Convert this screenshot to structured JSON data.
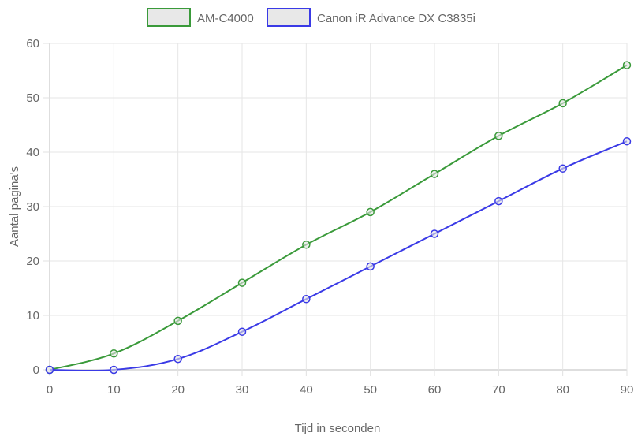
{
  "chart_data": {
    "type": "line",
    "xlabel": "Tijd in seconden",
    "ylabel": "Aantal pagina's",
    "x": [
      0,
      10,
      20,
      30,
      40,
      50,
      60,
      70,
      80,
      90
    ],
    "xlim": [
      0,
      90
    ],
    "ylim": [
      0,
      60
    ],
    "xticks": [
      "0",
      "10",
      "20",
      "30",
      "40",
      "50",
      "60",
      "70",
      "80",
      "90"
    ],
    "yticks": [
      "0",
      "10",
      "20",
      "30",
      "40",
      "50",
      "60"
    ],
    "grid": true,
    "legend_position": "top",
    "series": [
      {
        "name": "AM-C4000",
        "color": "#3a9a3a",
        "values": [
          0,
          3,
          9,
          16,
          23,
          29,
          36,
          43,
          49,
          56
        ]
      },
      {
        "name": "Canon iR Advance DX C3835i",
        "color": "#3a3ae6",
        "values": [
          0,
          0,
          2,
          7,
          13,
          19,
          25,
          31,
          37,
          42
        ]
      }
    ]
  }
}
